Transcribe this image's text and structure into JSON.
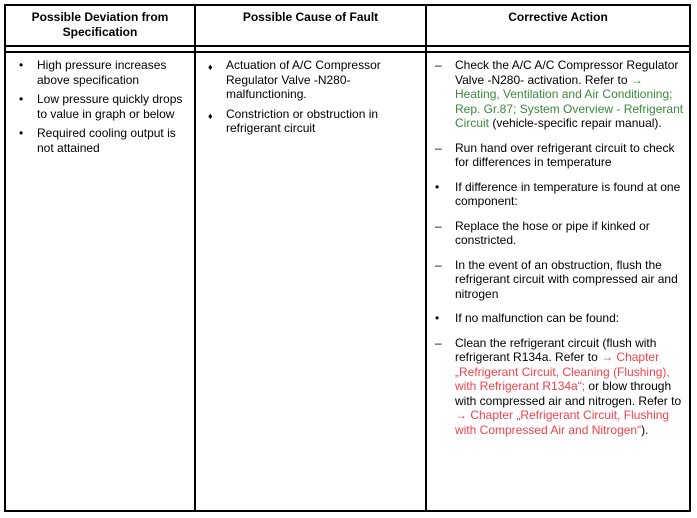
{
  "colors": {
    "text": "#000000",
    "border": "#000000",
    "background": "#ffffff",
    "link_green": "#3a8a3a",
    "link_red": "#f5414b"
  },
  "table": {
    "deviation_column": {
      "header": "Possible Deviation from Specification",
      "items": [
        {
          "marker": "•",
          "segments": [
            {
              "t": "High pressure increases above specification",
              "c": "black"
            }
          ]
        },
        {
          "marker": "•",
          "segments": [
            {
              "t": "Low pressure quickly drops to value in graph or below",
              "c": "black"
            }
          ]
        },
        {
          "marker": "•",
          "segments": [
            {
              "t": "Required cooling output is not attained",
              "c": "black"
            }
          ]
        }
      ]
    },
    "cause_column": {
      "header": "Possible Cause of Fault",
      "items": [
        {
          "marker": "♦",
          "segments": [
            {
              "t": "Actuation of A/C Compressor Regulator Valve -N280- malfunctioning.",
              "c": "black"
            }
          ]
        },
        {
          "marker": "♦",
          "segments": [
            {
              "t": "Constriction or obstruction in refrigerant circuit",
              "c": "black"
            }
          ]
        }
      ]
    },
    "corrective_column": {
      "header": "Corrective Action",
      "items": [
        {
          "marker": "–",
          "segments": [
            {
              "t": "Check the A/C A/C Compressor Regulator Valve -N280- activation. Refer to ",
              "c": "black"
            },
            {
              "t": "→ Heating, Ventilation and Air Conditioning; Rep. Gr.87; System Overview - Refrigerant Circuit",
              "c": "green"
            },
            {
              "t": " (vehicle-specific repair manual).",
              "c": "black"
            }
          ]
        },
        {
          "marker": "–",
          "segments": [
            {
              "t": "Run hand over refrigerant circuit to check for differences in temperature",
              "c": "black"
            }
          ]
        },
        {
          "marker": "•",
          "segments": [
            {
              "t": "If difference in temperature is found at one component:",
              "c": "black"
            }
          ]
        },
        {
          "marker": "–",
          "segments": [
            {
              "t": "Replace the hose or pipe if kinked or constricted.",
              "c": "black"
            }
          ]
        },
        {
          "marker": "–",
          "segments": [
            {
              "t": "In the event of an obstruction, flush the refrigerant circuit with compressed air and nitrogen",
              "c": "black"
            }
          ]
        },
        {
          "marker": "•",
          "segments": [
            {
              "t": "If no malfunction can be found:",
              "c": "black"
            }
          ]
        },
        {
          "marker": "–",
          "segments": [
            {
              "t": "Clean the refrigerant circuit (flush with refrigerant R134a. Refer to ",
              "c": "black"
            },
            {
              "t": "→ Chapter „Refrigerant Circuit, Cleaning (Flushing), with Refrigerant R134a“;",
              "c": "red"
            },
            {
              "t": " or blow through with compressed air and nitrogen. Refer to ",
              "c": "black"
            },
            {
              "t": "→ Chapter „Refrigerant Circuit, Flushing with Compressed Air and Nitrogen“",
              "c": "red"
            },
            {
              "t": ").",
              "c": "black"
            }
          ]
        }
      ]
    }
  }
}
